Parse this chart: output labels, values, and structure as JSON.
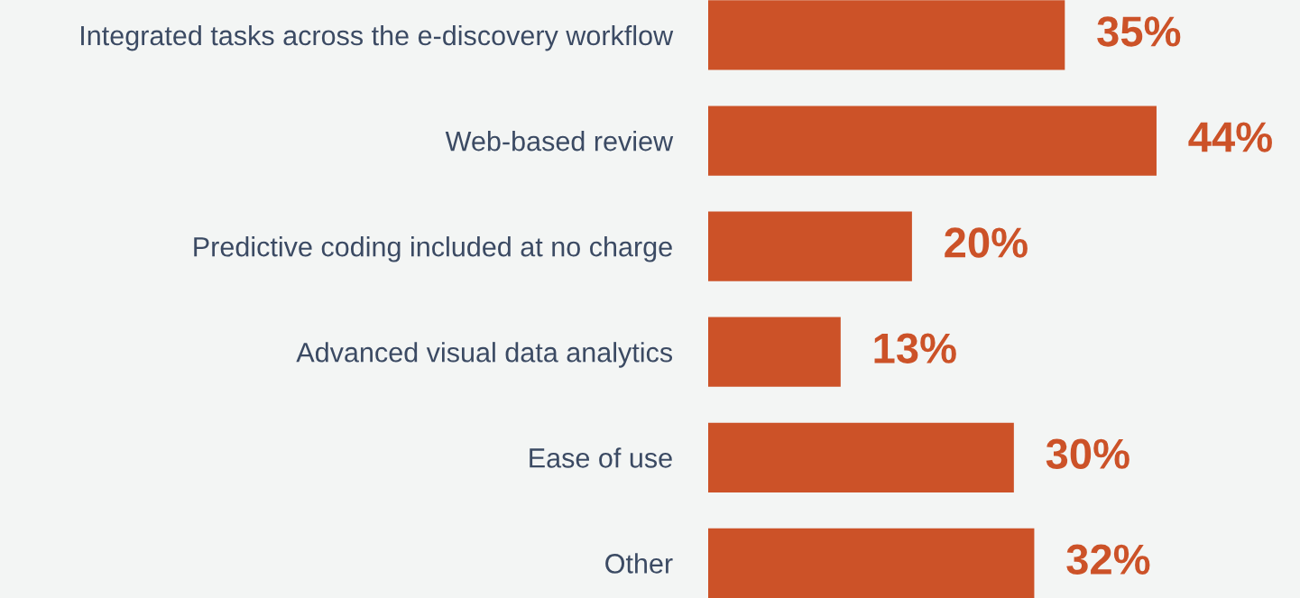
{
  "chart_data": {
    "type": "bar",
    "orientation": "horizontal",
    "categories": [
      "Integrated tasks across the e-discovery workflow",
      "Web-based review",
      "Predictive coding included at no charge",
      "Advanced visual data analytics",
      "Ease of use",
      "Other"
    ],
    "values": [
      35,
      44,
      20,
      13,
      30,
      32
    ],
    "value_labels": [
      "35%",
      "44%",
      "20%",
      "13%",
      "30%",
      "32%"
    ],
    "color": "#cc5228",
    "grid": false,
    "legend": false,
    "tick_labels": "y"
  }
}
